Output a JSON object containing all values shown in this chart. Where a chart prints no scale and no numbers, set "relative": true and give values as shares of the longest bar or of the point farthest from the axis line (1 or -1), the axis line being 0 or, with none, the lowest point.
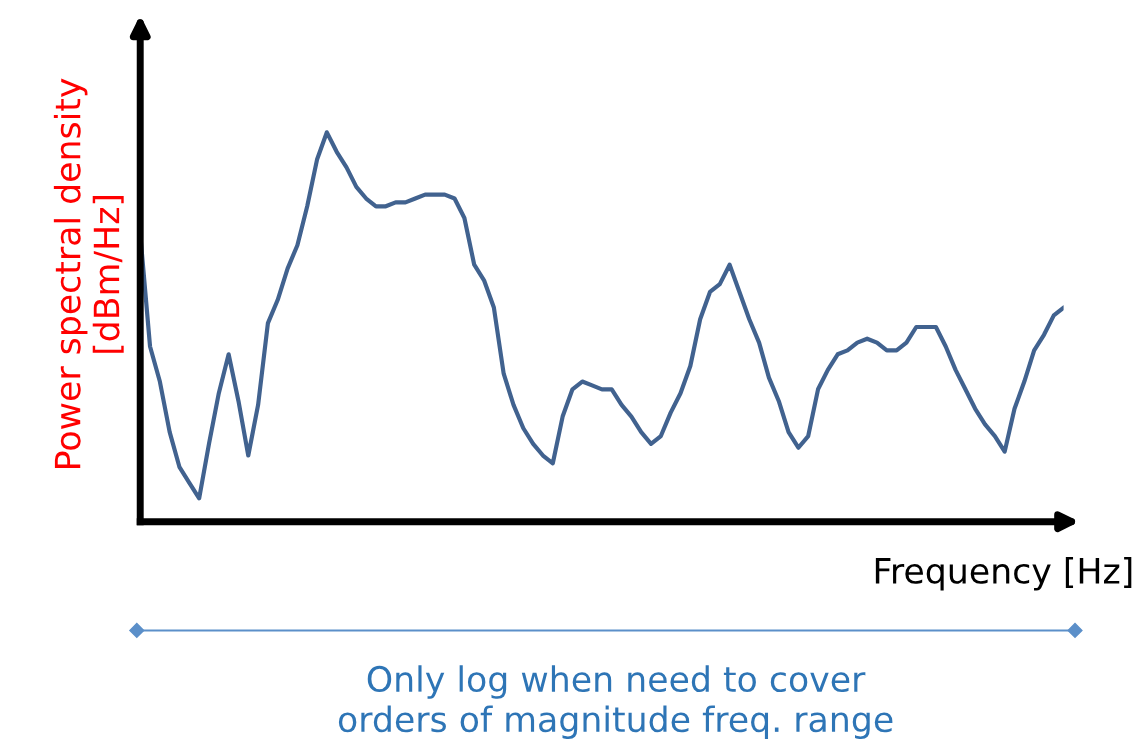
{
  "chart_data": {
    "type": "line",
    "relative": true,
    "xlabel": "Frequency [Hz]",
    "ylabel": "Power spectral density\n[dBm/Hz]",
    "annotations": [
      "Only log when need to cover\norders of magnitude freq. range"
    ],
    "categories": [
      null,
      null,
      null,
      null,
      null,
      null,
      null,
      null,
      null,
      null,
      null,
      null,
      null,
      null,
      null,
      null,
      null,
      null,
      null,
      null,
      null,
      null,
      null,
      null,
      null,
      null,
      null,
      null,
      null,
      null,
      null,
      null,
      null,
      null,
      null,
      null,
      null,
      null,
      null,
      null,
      null,
      null,
      null,
      null,
      null,
      null,
      null,
      null,
      null,
      null,
      null,
      null,
      null,
      null,
      null,
      null,
      null,
      null,
      null,
      null,
      null,
      null,
      null,
      null,
      null,
      null,
      null,
      null,
      null,
      null,
      null,
      null,
      null,
      null,
      null,
      null,
      null,
      null,
      null,
      null,
      null,
      null,
      null,
      null,
      null,
      null,
      null,
      null,
      null,
      null,
      null,
      null,
      null,
      null,
      null
    ],
    "series": [
      {
        "color": "#41628f",
        "values": [
          0.74,
          0.45,
          0.36,
          0.23,
          0.14,
          0.1,
          0.06,
          0.2,
          0.33,
          0.43,
          0.31,
          0.17,
          0.3,
          0.51,
          0.57,
          0.65,
          0.71,
          0.81,
          0.93,
          1.0,
          0.95,
          0.91,
          0.86,
          0.83,
          0.81,
          0.81,
          0.82,
          0.82,
          0.83,
          0.84,
          0.84,
          0.84,
          0.83,
          0.78,
          0.66,
          0.62,
          0.55,
          0.38,
          0.3,
          0.24,
          0.2,
          0.17,
          0.15,
          0.27,
          0.34,
          0.36,
          0.35,
          0.34,
          0.34,
          0.3,
          0.27,
          0.23,
          0.2,
          0.22,
          0.28,
          0.33,
          0.4,
          0.52,
          0.59,
          0.61,
          0.66,
          0.59,
          0.52,
          0.46,
          0.37,
          0.31,
          0.23,
          0.19,
          0.22,
          0.34,
          0.39,
          0.43,
          0.44,
          0.46,
          0.47,
          0.46,
          0.44,
          0.44,
          0.46,
          0.5,
          0.5,
          0.5,
          0.45,
          0.39,
          0.34,
          0.29,
          0.25,
          0.22,
          0.18,
          0.29,
          0.36,
          0.44,
          0.48,
          0.53,
          0.55
        ]
      }
    ]
  }
}
